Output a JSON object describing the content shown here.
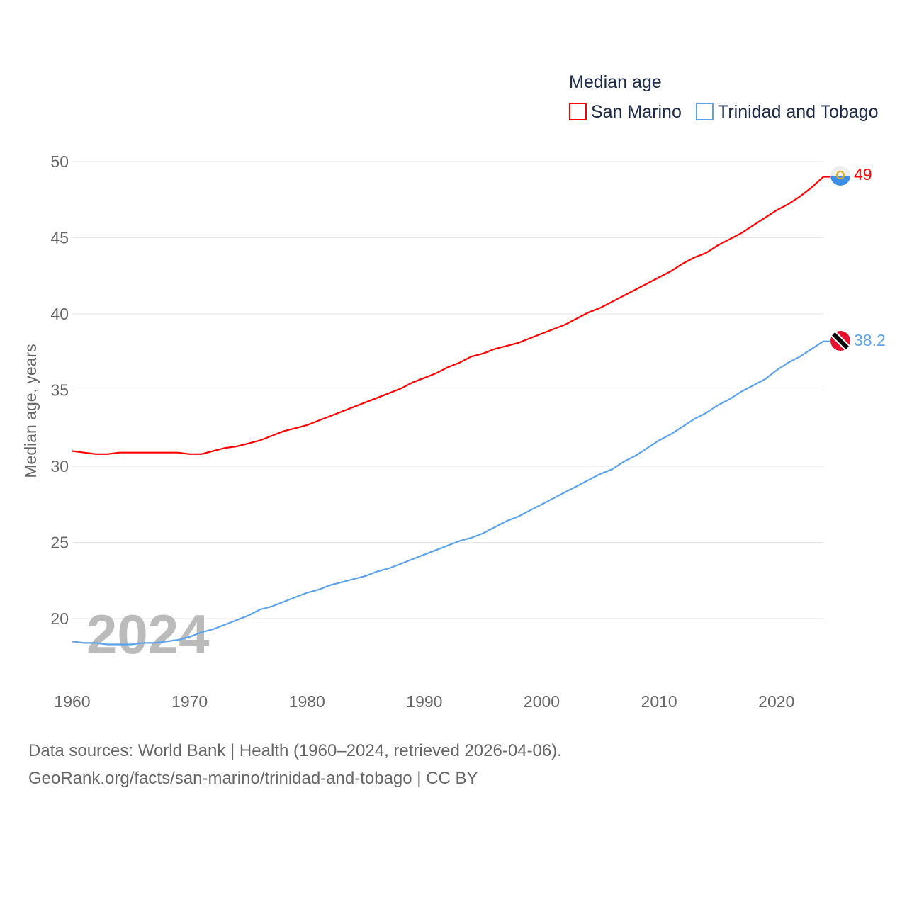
{
  "chart_data": {
    "type": "line",
    "legend_title": "Median age",
    "ylabel": "Median age, years",
    "xlabel": "",
    "watermark_year": "2024",
    "xlim": [
      1960,
      2024
    ],
    "ylim": [
      16.5,
      50
    ],
    "yticks": [
      20,
      25,
      30,
      35,
      40,
      45,
      50
    ],
    "xticks": [
      1960,
      1970,
      1980,
      1990,
      2000,
      2010,
      2020
    ],
    "grid": true,
    "legend_position": "top-right",
    "series": [
      {
        "name": "San Marino",
        "color": "#ff0000",
        "end_label": "49",
        "values": [
          31.0,
          30.9,
          30.8,
          30.8,
          30.9,
          30.9,
          30.9,
          30.9,
          30.9,
          30.9,
          30.8,
          30.8,
          31.0,
          31.2,
          31.3,
          31.5,
          31.7,
          32.0,
          32.3,
          32.5,
          32.7,
          33.0,
          33.3,
          33.6,
          33.9,
          34.2,
          34.5,
          34.8,
          35.1,
          35.5,
          35.8,
          36.1,
          36.5,
          36.8,
          37.2,
          37.4,
          37.7,
          37.9,
          38.1,
          38.4,
          38.7,
          39.0,
          39.3,
          39.7,
          40.1,
          40.4,
          40.8,
          41.2,
          41.6,
          42.0,
          42.4,
          42.8,
          43.3,
          43.7,
          44.0,
          44.5,
          44.9,
          45.3,
          45.8,
          46.3,
          46.8,
          47.2,
          47.7,
          48.3,
          49.0
        ]
      },
      {
        "name": "Trinidad and Tobago",
        "color": "#5ba3ec",
        "end_label": "38.2",
        "values": [
          18.5,
          18.4,
          18.4,
          18.3,
          18.3,
          18.3,
          18.4,
          18.4,
          18.5,
          18.6,
          18.8,
          19.1,
          19.3,
          19.6,
          19.9,
          20.2,
          20.6,
          20.8,
          21.1,
          21.4,
          21.7,
          21.9,
          22.2,
          22.4,
          22.6,
          22.8,
          23.1,
          23.3,
          23.6,
          23.9,
          24.2,
          24.5,
          24.8,
          25.1,
          25.3,
          25.6,
          26.0,
          26.4,
          26.7,
          27.1,
          27.5,
          27.9,
          28.3,
          28.7,
          29.1,
          29.5,
          29.8,
          30.3,
          30.7,
          31.2,
          31.7,
          32.1,
          32.6,
          33.1,
          33.5,
          34.0,
          34.4,
          34.9,
          35.3,
          35.7,
          36.3,
          36.8,
          37.2,
          37.7,
          38.2
        ]
      }
    ]
  },
  "footer": {
    "line1": "Data sources: World Bank | Health (1960–2024, retrieved 2026-04-06).",
    "line2": "GeoRank.org/facts/san-marino/trinidad-and-tobago | CC BY"
  }
}
